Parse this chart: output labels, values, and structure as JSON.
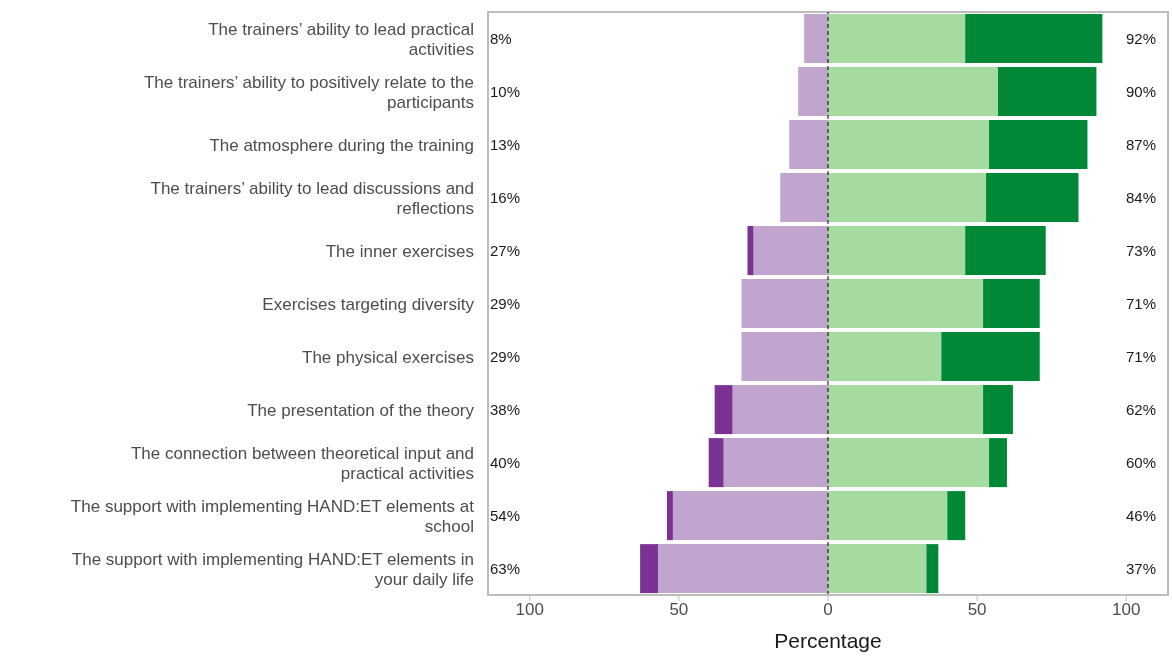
{
  "chart_data": {
    "type": "bar",
    "orientation": "horizontal",
    "stacked": true,
    "xlabel": "Percentage",
    "categories": [
      "The trainers’ ability to lead practical\nactivities",
      "The trainers’ ability to positively relate to the\nparticipants",
      "The atmosphere during the training",
      "The trainers’ ability to lead discussions and\nreflections",
      "The inner exercises",
      "Exercises targeting diversity",
      "The physical exercises",
      "The presentation of the theory",
      "The connection between theoretical input and\npractical activities",
      "The support with implementing HAND:ET elements at\nschool",
      "The support with implementing HAND:ET elements in\nyour daily life"
    ],
    "series": [
      {
        "color": "#c2a5cf",
        "values": [
          -8,
          -10,
          -13,
          -16,
          -25,
          -29,
          -29,
          -32,
          -35,
          -52,
          -57
        ]
      },
      {
        "color": "#7b3294",
        "values": [
          0,
          0,
          0,
          0,
          -2,
          0,
          0,
          -6,
          -5,
          -2,
          -6
        ]
      },
      {
        "color": "#a6dba0",
        "values": [
          46,
          57,
          54,
          53,
          46,
          52,
          38,
          52,
          54,
          40,
          33
        ]
      },
      {
        "color": "#008837",
        "values": [
          46,
          33,
          33,
          31,
          27,
          19,
          33,
          10,
          6,
          6,
          4
        ]
      }
    ],
    "totals": [
      [
        "8%",
        "92%"
      ],
      [
        "10%",
        "90%"
      ],
      [
        "13%",
        "87%"
      ],
      [
        "16%",
        "84%"
      ],
      [
        "27%",
        "73%"
      ],
      [
        "29%",
        "71%"
      ],
      [
        "29%",
        "71%"
      ],
      [
        "38%",
        "62%"
      ],
      [
        "40%",
        "60%"
      ],
      [
        "54%",
        "46%"
      ],
      [
        "63%",
        "37%"
      ]
    ],
    "xlim": [
      -114,
      114
    ],
    "xticks": [
      {
        "value": -100,
        "label": "100"
      },
      {
        "value": -50,
        "label": "50"
      },
      0,
      50,
      {
        "value": 100,
        "label": "100"
      }
    ],
    "ref_lines": [
      {
        "axis": "x",
        "value": 0,
        "color": "#000000",
        "line_style": "dashed"
      }
    ],
    "grid": false,
    "legend": false
  }
}
